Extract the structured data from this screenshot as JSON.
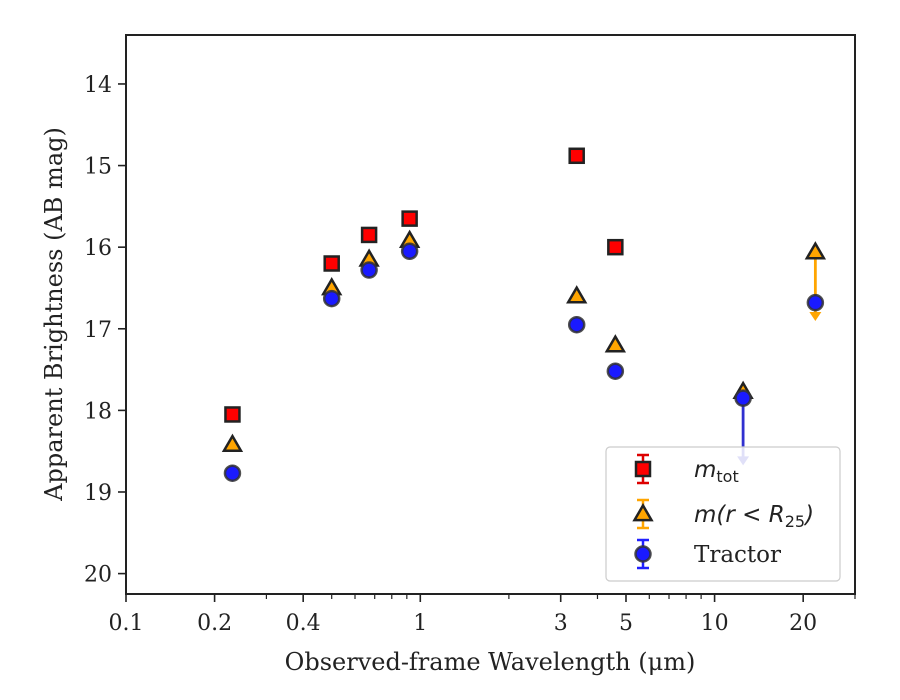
{
  "chart_data": {
    "type": "scatter",
    "title": "",
    "xlabel": "Observed-frame Wavelength (μm)",
    "ylabel": "Apparent Brightness (AB mag)",
    "xscale": "log",
    "xlim": [
      0.1,
      30
    ],
    "ylim": [
      20.25,
      13.4
    ],
    "y_inverted": true,
    "grid": false,
    "legend_position": "lower-right",
    "x_ticks": [
      {
        "value": 0.1,
        "label": "0.1"
      },
      {
        "value": 0.2,
        "label": "0.2"
      },
      {
        "value": 0.4,
        "label": "0.4"
      },
      {
        "value": 1,
        "label": "1"
      },
      {
        "value": 3,
        "label": "3"
      },
      {
        "value": 5,
        "label": "5"
      },
      {
        "value": 10,
        "label": "10"
      },
      {
        "value": 20,
        "label": "20"
      }
    ],
    "y_ticks": [
      {
        "value": 14,
        "label": "14"
      },
      {
        "value": 15,
        "label": "15"
      },
      {
        "value": 16,
        "label": "16"
      },
      {
        "value": 17,
        "label": "17"
      },
      {
        "value": 18,
        "label": "18"
      },
      {
        "value": 19,
        "label": "19"
      },
      {
        "value": 20,
        "label": "20"
      }
    ],
    "series": [
      {
        "name": "m_tot",
        "legend_label": {
          "base": "m",
          "sub": "tot",
          "rest": ""
        },
        "marker": "square",
        "color": "#ff0000",
        "edge_color": "#222222",
        "x": [
          0.23,
          0.5,
          0.67,
          0.92,
          3.4,
          4.6
        ],
        "y": [
          18.05,
          16.2,
          15.85,
          15.65,
          14.88,
          16.0
        ],
        "upper_limits": []
      },
      {
        "name": "m(r < R_25)",
        "legend_label": {
          "base": "m(r < R",
          "sub": "25",
          "rest": ")"
        },
        "marker": "triangle",
        "color": "#ffa500",
        "edge_color": "#222222",
        "x": [
          0.23,
          0.5,
          0.67,
          0.92,
          3.4,
          4.6,
          12.5,
          22
        ],
        "y": [
          18.42,
          16.5,
          16.15,
          15.92,
          16.6,
          17.2,
          17.77,
          16.06
        ],
        "upper_limits": [
          {
            "x": 22,
            "y": 16.06,
            "to": 16.88
          }
        ]
      },
      {
        "name": "Tractor",
        "legend_label": {
          "base": "Tractor",
          "sub": "",
          "rest": ""
        },
        "marker": "circle",
        "color": "#1a1aff",
        "edge_color": "#333333",
        "x": [
          0.23,
          0.5,
          0.67,
          0.92,
          3.4,
          4.6,
          12.5,
          22
        ],
        "y": [
          18.77,
          16.63,
          16.28,
          16.05,
          16.95,
          17.52,
          17.85,
          16.68
        ],
        "upper_limits": [
          {
            "x": 12.5,
            "y": 17.85,
            "to": 18.65
          }
        ]
      }
    ]
  }
}
